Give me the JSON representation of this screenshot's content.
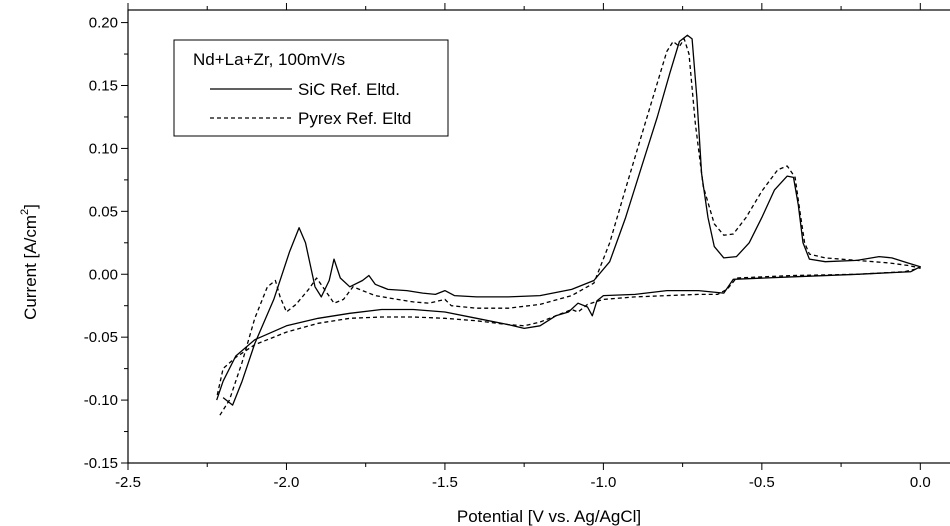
{
  "chart_data": {
    "type": "line",
    "title": "",
    "xlabel": "Potential [V vs. Ag/AgCl]",
    "ylabel": "Current [A/cm",
    "ylabel_superscript": "2",
    "ylabel_suffix": "]",
    "xlim": [
      -2.5,
      0.1
    ],
    "ylim": [
      -0.15,
      0.21
    ],
    "x_ticks": [
      "-2.5",
      "-2.0",
      "-1.5",
      "-1.0",
      "-0.5",
      "0.0"
    ],
    "y_ticks": [
      "-0.15",
      "-0.10",
      "-0.05",
      "0.00",
      "0.05",
      "0.10",
      "0.15",
      "0.20"
    ],
    "grid": false,
    "legend": {
      "title": "Nd+La+Zr, 100mV/s",
      "placement": "top-left",
      "entries": [
        "SiC Ref. Eltd.",
        "Pyrex Ref. Eltd"
      ]
    },
    "series": [
      {
        "name": "SiC Ref. Eltd.",
        "style": "solid",
        "color": "#000000",
        "points": [
          [
            -2.2,
            -0.098
          ],
          [
            -2.17,
            -0.104
          ],
          [
            -2.14,
            -0.085
          ],
          [
            -2.1,
            -0.055
          ],
          [
            -2.04,
            -0.02
          ],
          [
            -1.99,
            0.018
          ],
          [
            -1.96,
            0.037
          ],
          [
            -1.94,
            0.025
          ],
          [
            -1.91,
            -0.01
          ],
          [
            -1.89,
            -0.018
          ],
          [
            -1.865,
            -0.005
          ],
          [
            -1.85,
            0.012
          ],
          [
            -1.83,
            -0.003
          ],
          [
            -1.8,
            -0.01
          ],
          [
            -1.76,
            -0.005
          ],
          [
            -1.74,
            -0.001
          ],
          [
            -1.72,
            -0.008
          ],
          [
            -1.68,
            -0.012
          ],
          [
            -1.62,
            -0.013
          ],
          [
            -1.57,
            -0.015
          ],
          [
            -1.53,
            -0.016
          ],
          [
            -1.5,
            -0.013
          ],
          [
            -1.47,
            -0.017
          ],
          [
            -1.4,
            -0.018
          ],
          [
            -1.3,
            -0.018
          ],
          [
            -1.2,
            -0.017
          ],
          [
            -1.1,
            -0.012
          ],
          [
            -1.03,
            -0.005
          ],
          [
            -0.98,
            0.01
          ],
          [
            -0.93,
            0.045
          ],
          [
            -0.88,
            0.085
          ],
          [
            -0.83,
            0.125
          ],
          [
            -0.79,
            0.16
          ],
          [
            -0.76,
            0.185
          ],
          [
            -0.735,
            0.19
          ],
          [
            -0.72,
            0.187
          ],
          [
            -0.705,
            0.14
          ],
          [
            -0.69,
            0.08
          ],
          [
            -0.67,
            0.045
          ],
          [
            -0.65,
            0.022
          ],
          [
            -0.62,
            0.013
          ],
          [
            -0.58,
            0.014
          ],
          [
            -0.54,
            0.025
          ],
          [
            -0.5,
            0.045
          ],
          [
            -0.46,
            0.067
          ],
          [
            -0.42,
            0.078
          ],
          [
            -0.4,
            0.077
          ],
          [
            -0.385,
            0.055
          ],
          [
            -0.37,
            0.025
          ],
          [
            -0.35,
            0.012
          ],
          [
            -0.3,
            0.01
          ],
          [
            -0.2,
            0.011
          ],
          [
            -0.13,
            0.014
          ],
          [
            -0.09,
            0.013
          ],
          [
            -0.04,
            0.009
          ],
          [
            0.0,
            0.006
          ],
          [
            -0.03,
            0.002
          ],
          [
            -0.2,
            0.0
          ],
          [
            -0.4,
            -0.002
          ],
          [
            -0.59,
            -0.004
          ],
          [
            -0.62,
            -0.015
          ],
          [
            -0.7,
            -0.013
          ],
          [
            -0.8,
            -0.013
          ],
          [
            -0.9,
            -0.016
          ],
          [
            -1.0,
            -0.017
          ],
          [
            -1.02,
            -0.021
          ],
          [
            -1.035,
            -0.033
          ],
          [
            -1.05,
            -0.026
          ],
          [
            -1.08,
            -0.023
          ],
          [
            -1.11,
            -0.03
          ],
          [
            -1.15,
            -0.033
          ],
          [
            -1.2,
            -0.041
          ],
          [
            -1.25,
            -0.043
          ],
          [
            -1.3,
            -0.04
          ],
          [
            -1.4,
            -0.035
          ],
          [
            -1.5,
            -0.03
          ],
          [
            -1.6,
            -0.028
          ],
          [
            -1.7,
            -0.028
          ],
          [
            -1.8,
            -0.031
          ],
          [
            -1.9,
            -0.035
          ],
          [
            -2.0,
            -0.041
          ],
          [
            -2.1,
            -0.052
          ],
          [
            -2.16,
            -0.065
          ],
          [
            -2.2,
            -0.085
          ],
          [
            -2.22,
            -0.1
          ]
        ]
      },
      {
        "name": "Pyrex Ref. Eltd",
        "style": "dashed",
        "color": "#000000",
        "points": [
          [
            -2.21,
            -0.112
          ],
          [
            -2.18,
            -0.1
          ],
          [
            -2.14,
            -0.07
          ],
          [
            -2.1,
            -0.035
          ],
          [
            -2.06,
            -0.01
          ],
          [
            -2.035,
            -0.005
          ],
          [
            -2.02,
            -0.018
          ],
          [
            -2.0,
            -0.03
          ],
          [
            -1.97,
            -0.024
          ],
          [
            -1.93,
            -0.012
          ],
          [
            -1.905,
            -0.003
          ],
          [
            -1.88,
            -0.012
          ],
          [
            -1.85,
            -0.023
          ],
          [
            -1.82,
            -0.02
          ],
          [
            -1.79,
            -0.01
          ],
          [
            -1.76,
            -0.013
          ],
          [
            -1.72,
            -0.017
          ],
          [
            -1.65,
            -0.02
          ],
          [
            -1.6,
            -0.022
          ],
          [
            -1.55,
            -0.023
          ],
          [
            -1.5,
            -0.02
          ],
          [
            -1.48,
            -0.025
          ],
          [
            -1.4,
            -0.027
          ],
          [
            -1.3,
            -0.027
          ],
          [
            -1.2,
            -0.024
          ],
          [
            -1.1,
            -0.017
          ],
          [
            -1.03,
            -0.007
          ],
          [
            -0.98,
            0.025
          ],
          [
            -0.93,
            0.068
          ],
          [
            -0.88,
            0.11
          ],
          [
            -0.83,
            0.152
          ],
          [
            -0.8,
            0.177
          ],
          [
            -0.78,
            0.185
          ],
          [
            -0.76,
            0.181
          ],
          [
            -0.745,
            0.187
          ],
          [
            -0.73,
            0.175
          ],
          [
            -0.71,
            0.12
          ],
          [
            -0.685,
            0.07
          ],
          [
            -0.65,
            0.04
          ],
          [
            -0.62,
            0.031
          ],
          [
            -0.59,
            0.032
          ],
          [
            -0.55,
            0.045
          ],
          [
            -0.5,
            0.066
          ],
          [
            -0.45,
            0.083
          ],
          [
            -0.42,
            0.086
          ],
          [
            -0.395,
            0.077
          ],
          [
            -0.38,
            0.05
          ],
          [
            -0.365,
            0.025
          ],
          [
            -0.35,
            0.016
          ],
          [
            -0.3,
            0.013
          ],
          [
            -0.2,
            0.011
          ],
          [
            -0.1,
            0.009
          ],
          [
            -0.04,
            0.007
          ],
          [
            0.0,
            0.005
          ],
          [
            -0.05,
            0.002
          ],
          [
            -0.2,
            0.0
          ],
          [
            -0.4,
            -0.001
          ],
          [
            -0.58,
            -0.003
          ],
          [
            -0.61,
            -0.012
          ],
          [
            -0.64,
            -0.016
          ],
          [
            -0.7,
            -0.016
          ],
          [
            -0.8,
            -0.017
          ],
          [
            -0.9,
            -0.018
          ],
          [
            -1.0,
            -0.02
          ],
          [
            -1.05,
            -0.024
          ],
          [
            -1.08,
            -0.03
          ],
          [
            -1.1,
            -0.028
          ],
          [
            -1.15,
            -0.033
          ],
          [
            -1.2,
            -0.038
          ],
          [
            -1.25,
            -0.041
          ],
          [
            -1.3,
            -0.04
          ],
          [
            -1.4,
            -0.037
          ],
          [
            -1.5,
            -0.035
          ],
          [
            -1.6,
            -0.034
          ],
          [
            -1.7,
            -0.034
          ],
          [
            -1.8,
            -0.035
          ],
          [
            -1.9,
            -0.039
          ],
          [
            -2.0,
            -0.046
          ],
          [
            -2.1,
            -0.056
          ],
          [
            -2.16,
            -0.066
          ],
          [
            -2.2,
            -0.075
          ],
          [
            -2.22,
            -0.098
          ]
        ]
      }
    ]
  }
}
